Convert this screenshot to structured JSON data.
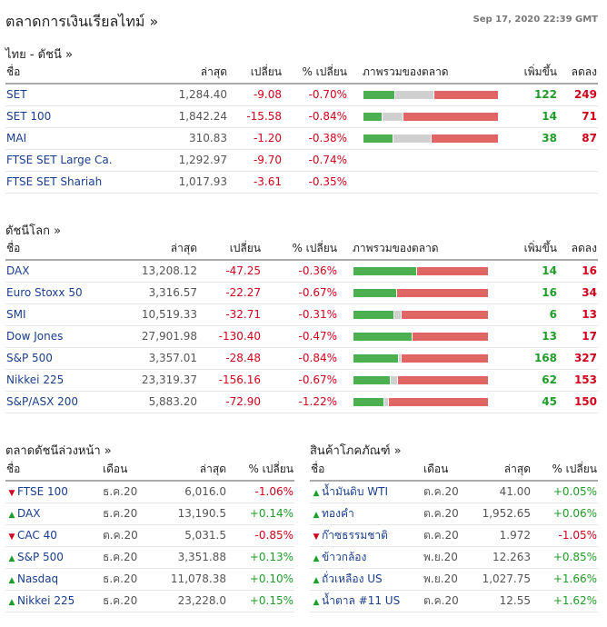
{
  "header": {
    "title": "ตลาดการเงินเรียลไทม์ »",
    "timestamp": "Sep 17, 2020 22:39 GMT"
  },
  "colors": {
    "up": "#4caf50",
    "unchanged": "#d0d0d0",
    "down": "#e06666",
    "link": "#1a3e8c"
  },
  "thai": {
    "title": "ไทย - ดัชนี  »",
    "headers": {
      "name": "ชื่อ",
      "last": "ล่าสุด",
      "change": "เปลี่ยน",
      "pct": "% เปลี่ยน",
      "overview": "ภาพรวมของตลาด",
      "adv": "เพิ่มขึ้น",
      "dec": "ลดลง"
    },
    "rows": [
      {
        "name": "SET",
        "last": "1,284.40",
        "change": "-9.08",
        "pct": "-0.70%",
        "adv": "122",
        "dec": "249",
        "unch": 146
      },
      {
        "name": "SET 100",
        "last": "1,842.24",
        "change": "-15.58",
        "pct": "-0.84%",
        "adv": "14",
        "dec": "71",
        "unch": 15
      },
      {
        "name": "MAI",
        "last": "310.83",
        "change": "-1.20",
        "pct": "-0.38%",
        "adv": "38",
        "dec": "87",
        "unch": 50
      },
      {
        "name": "FTSE SET Large Ca.",
        "last": "1,292.97",
        "change": "-9.70",
        "pct": "-0.74%",
        "adv": "",
        "dec": ""
      },
      {
        "name": "FTSE SET Shariah",
        "last": "1,017.93",
        "change": "-3.61",
        "pct": "-0.35%",
        "adv": "",
        "dec": ""
      }
    ]
  },
  "world": {
    "title": "ดัชนีโลก »",
    "headers": {
      "name": "ชื่อ",
      "last": "ล่าสุด",
      "change": "เปลี่ยน",
      "pct": "% เปลี่ยน",
      "overview": "ภาพรวมของตลาด",
      "adv": "เพิ่มขึ้น",
      "dec": "ลดลง"
    },
    "rows": [
      {
        "name": "DAX",
        "last": "13,208.12",
        "change": "-47.25",
        "pct": "-0.36%",
        "adv": "14",
        "dec": "16",
        "unch": 0
      },
      {
        "name": "Euro Stoxx 50",
        "last": "3,316.57",
        "change": "-22.27",
        "pct": "-0.67%",
        "adv": "16",
        "dec": "34",
        "unch": 0
      },
      {
        "name": "SMI",
        "last": "10,519.33",
        "change": "-32.71",
        "pct": "-0.31%",
        "adv": "6",
        "dec": "13",
        "unch": 1
      },
      {
        "name": "Dow Jones",
        "last": "27,901.98",
        "change": "-130.40",
        "pct": "-0.47%",
        "adv": "13",
        "dec": "17",
        "unch": 0
      },
      {
        "name": "S&P 500",
        "last": "3,357.01",
        "change": "-28.48",
        "pct": "-0.84%",
        "adv": "168",
        "dec": "327",
        "unch": 5
      },
      {
        "name": "Nikkei 225",
        "last": "23,319.37",
        "change": "-156.16",
        "pct": "-0.67%",
        "adv": "62",
        "dec": "153",
        "unch": 10
      },
      {
        "name": "S&P/ASX 200",
        "last": "5,883.20",
        "change": "-72.90",
        "pct": "-1.22%",
        "adv": "45",
        "dec": "150",
        "unch": 5
      }
    ]
  },
  "futures": {
    "title": "ตลาดดัชนีล่วงหน้า »",
    "headers": {
      "name": "ชื่อ",
      "month": "เดือน",
      "last": "ล่าสุด",
      "pct": "% เปลี่ยน"
    },
    "rows": [
      {
        "dir": "down",
        "name": "FTSE 100",
        "month": "ธ.ค.20",
        "last": "6,016.0",
        "pct": "-1.06%"
      },
      {
        "dir": "up",
        "name": "DAX",
        "month": "ธ.ค.20",
        "last": "13,190.5",
        "pct": "+0.14%"
      },
      {
        "dir": "down",
        "name": "CAC 40",
        "month": "ต.ค.20",
        "last": "5,031.5",
        "pct": "-0.85%"
      },
      {
        "dir": "up",
        "name": "S&P 500",
        "month": "ธ.ค.20",
        "last": "3,351.88",
        "pct": "+0.13%"
      },
      {
        "dir": "up",
        "name": "Nasdaq",
        "month": "ธ.ค.20",
        "last": "11,078.38",
        "pct": "+0.10%"
      },
      {
        "dir": "up",
        "name": "Nikkei 225",
        "month": "ธ.ค.20",
        "last": "23,228.0",
        "pct": "+0.15%"
      }
    ]
  },
  "commodities": {
    "title": "สินค้าโภคภัณฑ์ »",
    "headers": {
      "name": "ชื่อ",
      "month": "เดือน",
      "last": "ล่าสุด",
      "pct": "% เปลี่ยน"
    },
    "rows": [
      {
        "dir": "up",
        "name": "น้ำมันดิบ WTI",
        "month": "ต.ค.20",
        "last": "41.00",
        "pct": "+0.05%"
      },
      {
        "dir": "up",
        "name": "ทองคำ",
        "month": "ต.ค.20",
        "last": "1,952.65",
        "pct": "+0.06%"
      },
      {
        "dir": "down",
        "name": "ก๊าซธรรมชาติ",
        "month": "ต.ค.20",
        "last": "1.972",
        "pct": "-1.05%"
      },
      {
        "dir": "up",
        "name": "ข้าวกล้อง",
        "month": "พ.ย.20",
        "last": "12.263",
        "pct": "+0.85%"
      },
      {
        "dir": "up",
        "name": "ถั่วเหลือง US",
        "month": "พ.ย.20",
        "last": "1,027.75",
        "pct": "+1.66%"
      },
      {
        "dir": "up",
        "name": "น้ำตาล #11 US",
        "month": "ต.ค.20",
        "last": "12.55",
        "pct": "+1.62%"
      }
    ]
  }
}
